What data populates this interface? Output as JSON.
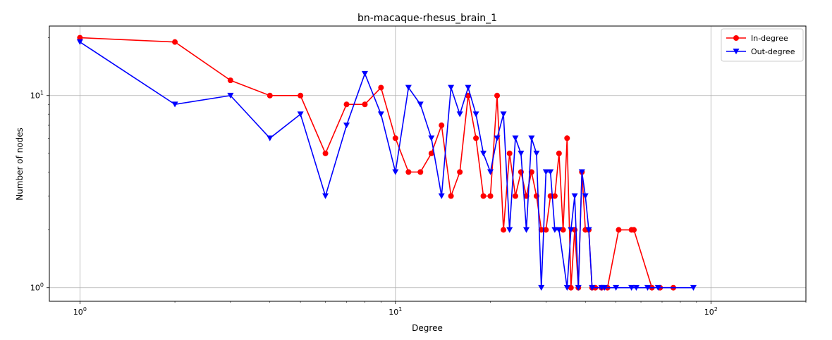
{
  "chart_data": {
    "type": "line",
    "title": "bn-macaque-rhesus_brain_1",
    "xlabel": "Degree",
    "ylabel": "Number of nodes",
    "xscale": "log",
    "yscale": "log",
    "xlim": [
      0.8,
      200
    ],
    "ylim": [
      0.85,
      23
    ],
    "grid": true,
    "legend_position": "top-right",
    "x_ticks": [
      {
        "value": 1,
        "base": "10",
        "exp": "0"
      },
      {
        "value": 10,
        "base": "10",
        "exp": "1"
      },
      {
        "value": 100,
        "base": "10",
        "exp": "2"
      }
    ],
    "y_ticks": [
      {
        "value": 1,
        "base": "10",
        "exp": "0"
      },
      {
        "value": 10,
        "base": "10",
        "exp": "1"
      }
    ],
    "series": [
      {
        "name": "In-degree",
        "color": "#ff0000",
        "marker": "circle",
        "x": [
          1,
          2,
          3,
          4,
          5,
          6,
          7,
          8,
          9,
          10,
          11,
          12,
          13,
          14,
          15,
          16,
          17,
          18,
          19,
          20,
          21,
          22,
          23,
          24,
          25,
          26,
          27,
          28,
          29,
          30,
          31,
          32,
          33,
          34,
          35,
          36,
          37,
          38,
          39,
          40,
          41,
          42,
          43,
          45,
          47,
          51,
          56,
          57,
          65,
          69,
          76
        ],
        "y": [
          20,
          19,
          12,
          10,
          10,
          5,
          9,
          9,
          11,
          6,
          4,
          4,
          5,
          7,
          3,
          4,
          10,
          6,
          3,
          3,
          10,
          2,
          5,
          3,
          4,
          3,
          4,
          3,
          2,
          2,
          3,
          3,
          5,
          2,
          6,
          1,
          2,
          1,
          4,
          2,
          2,
          1,
          1,
          1,
          1,
          2,
          2,
          2,
          1,
          1,
          1
        ]
      },
      {
        "name": "Out-degree",
        "color": "#0000ff",
        "marker": "triangle-down",
        "x": [
          1,
          2,
          3,
          4,
          5,
          6,
          7,
          8,
          9,
          10,
          11,
          12,
          13,
          14,
          15,
          16,
          17,
          18,
          19,
          20,
          21,
          22,
          23,
          24,
          25,
          26,
          27,
          28,
          29,
          30,
          31,
          32,
          33,
          35,
          36,
          37,
          38,
          39,
          40,
          41,
          42,
          45,
          46,
          50,
          56,
          58,
          63,
          68,
          88
        ],
        "y": [
          19,
          9,
          10,
          6,
          8,
          3,
          7,
          13,
          8,
          4,
          11,
          9,
          6,
          3,
          11,
          8,
          11,
          8,
          5,
          4,
          6,
          8,
          2,
          6,
          5,
          2,
          6,
          5,
          1,
          4,
          4,
          2,
          2,
          1,
          2,
          3,
          1,
          4,
          3,
          2,
          1,
          1,
          1,
          1,
          1,
          1,
          1,
          1,
          1
        ]
      }
    ]
  }
}
